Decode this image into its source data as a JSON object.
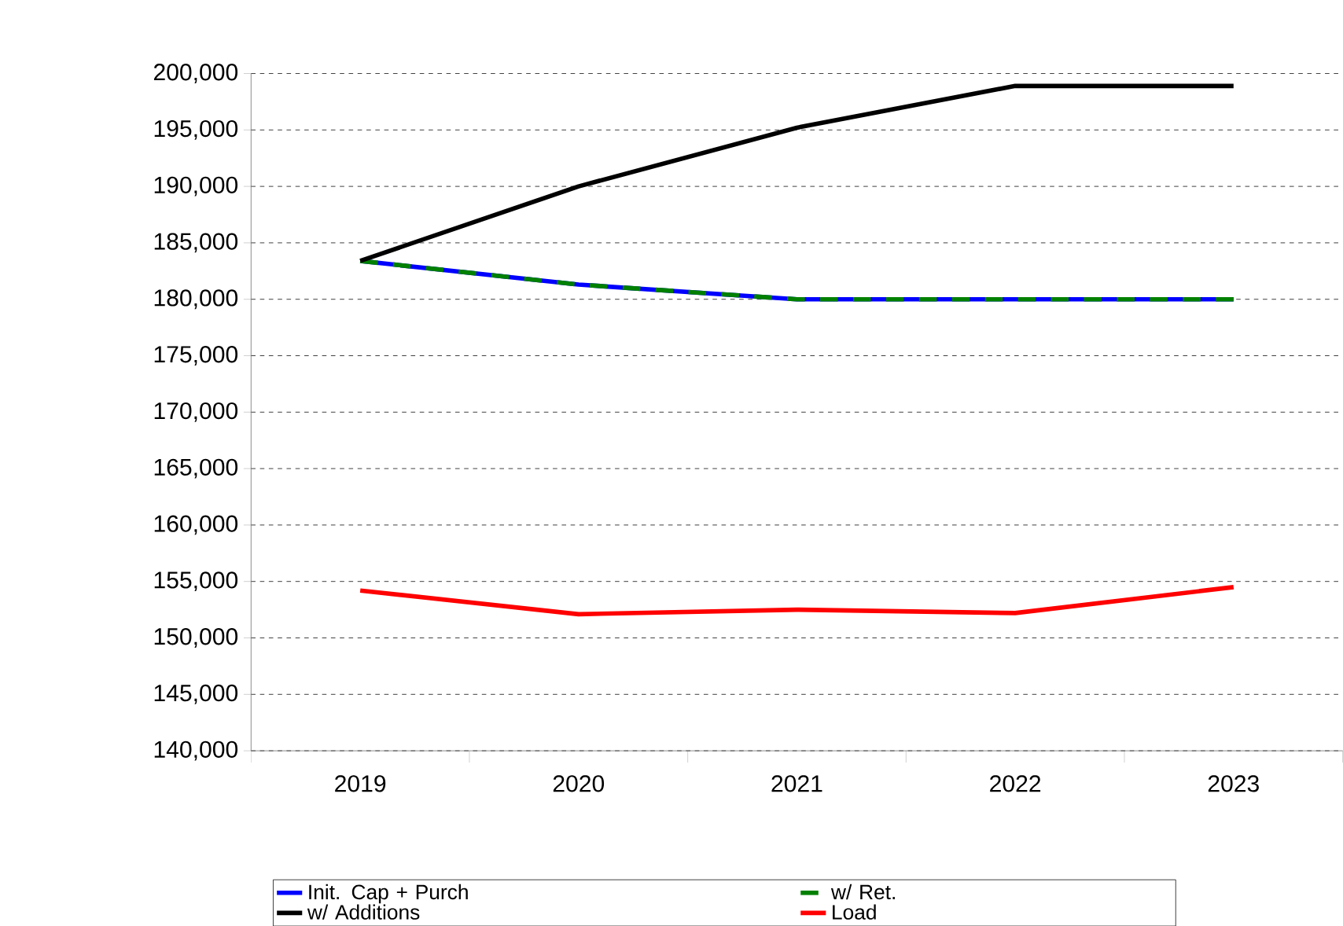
{
  "chart_data": {
    "type": "line",
    "categories": [
      "2019",
      "2020",
      "2021",
      "2022",
      "2023"
    ],
    "series": [
      {
        "name": "Init. Cap + Purch",
        "color": "#0000ff",
        "values": [
          183400,
          181300,
          180000,
          180000,
          180000
        ]
      },
      {
        "name": "w/ Ret.",
        "color": "#008000",
        "line_style": "dashed",
        "values": [
          183400,
          181300,
          180000,
          180000,
          180000
        ]
      },
      {
        "name": "w/ Additions",
        "color": "#000000",
        "values": [
          183400,
          190000,
          195200,
          198900,
          198900
        ]
      },
      {
        "name": "Load",
        "color": "#ff0000",
        "values": [
          154200,
          152100,
          152500,
          152200,
          154500
        ]
      }
    ],
    "ylim": [
      140000,
      200000
    ],
    "yticks": [
      {
        "value": 140000,
        "label": "140,000"
      },
      {
        "value": 145000,
        "label": "145,000"
      },
      {
        "value": 150000,
        "label": "150,000"
      },
      {
        "value": 155000,
        "label": "155,000"
      },
      {
        "value": 160000,
        "label": "160,000"
      },
      {
        "value": 165000,
        "label": "165,000"
      },
      {
        "value": 170000,
        "label": "170,000"
      },
      {
        "value": 175000,
        "label": "175,000"
      },
      {
        "value": 180000,
        "label": "180,000"
      },
      {
        "value": 185000,
        "label": "185,000"
      },
      {
        "value": 190000,
        "label": "190,000"
      },
      {
        "value": 195000,
        "label": "195,000"
      },
      {
        "value": 200000,
        "label": "200,000"
      }
    ],
    "grid": "y",
    "legend": "bottom",
    "marker": "none"
  }
}
